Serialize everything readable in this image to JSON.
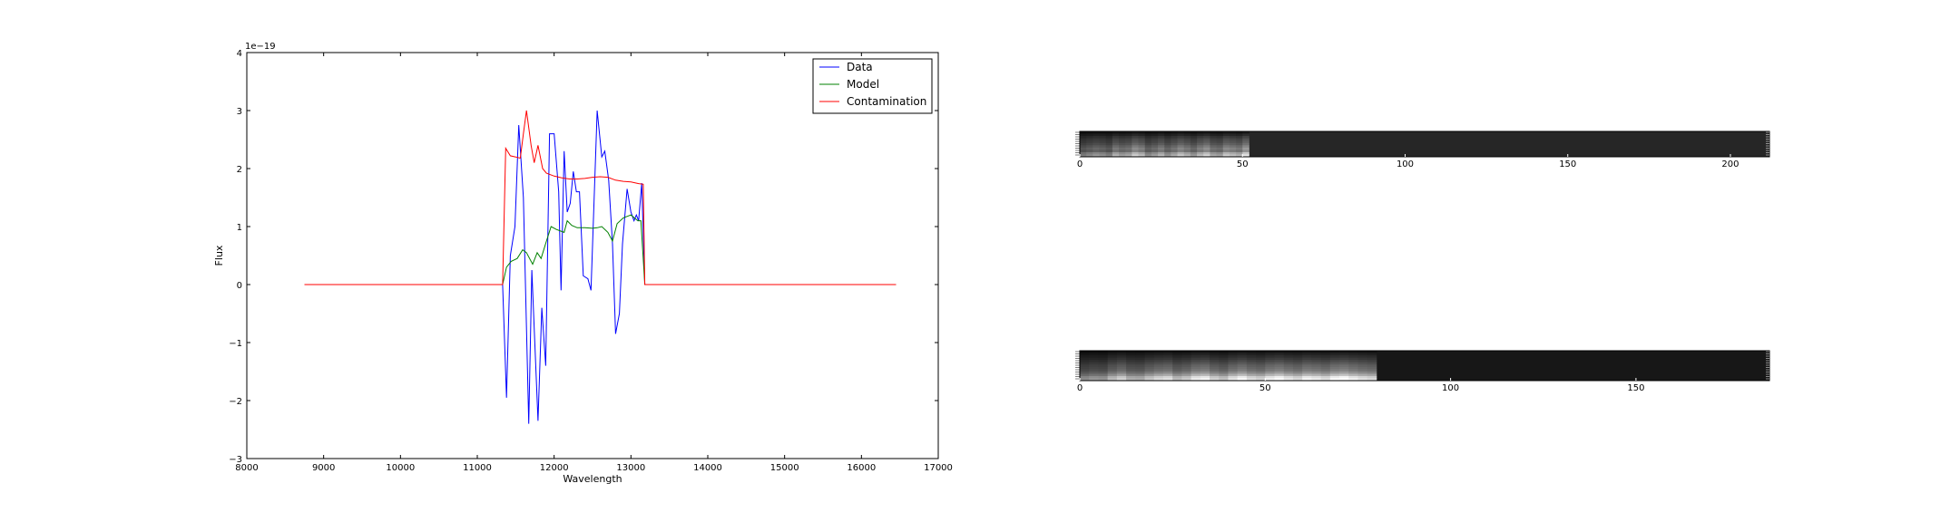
{
  "chart_data": [
    {
      "type": "line",
      "title": "",
      "xlabel": "Wavelength",
      "ylabel": "Flux",
      "y_offset_text": "1e−19",
      "xlim": [
        8000,
        17000
      ],
      "ylim": [
        -3,
        4
      ],
      "xticks": [
        8000,
        9000,
        10000,
        11000,
        12000,
        13000,
        14000,
        15000,
        16000,
        17000
      ],
      "xtick_labels": [
        "8000",
        "9000",
        "10000",
        "11000",
        "12000",
        "13000",
        "14000",
        "15000",
        "16000",
        "17000"
      ],
      "yticks": [
        -3,
        -2,
        -1,
        0,
        1,
        2,
        3,
        4
      ],
      "ytick_labels": [
        "−3",
        "−2",
        "−1",
        "0",
        "1",
        "2",
        "3",
        "4"
      ],
      "grid": false,
      "legend_position": "top-right",
      "series": [
        {
          "name": "Data",
          "color": "#0000ff",
          "points": [
            [
              8750,
              0
            ],
            [
              11330,
              0
            ],
            [
              11380,
              -1.95
            ],
            [
              11430,
              0.5
            ],
            [
              11490,
              1.0
            ],
            [
              11540,
              2.75
            ],
            [
              11600,
              1.5
            ],
            [
              11670,
              -2.4
            ],
            [
              11710,
              0.25
            ],
            [
              11790,
              -2.35
            ],
            [
              11840,
              -0.4
            ],
            [
              11890,
              -1.4
            ],
            [
              11940,
              2.6
            ],
            [
              12000,
              2.6
            ],
            [
              12060,
              1.6
            ],
            [
              12090,
              -0.1
            ],
            [
              12130,
              2.3
            ],
            [
              12170,
              1.25
            ],
            [
              12210,
              1.4
            ],
            [
              12250,
              1.95
            ],
            [
              12290,
              1.6
            ],
            [
              12330,
              1.6
            ],
            [
              12380,
              0.15
            ],
            [
              12440,
              0.1
            ],
            [
              12480,
              -0.1
            ],
            [
              12560,
              3.0
            ],
            [
              12620,
              2.2
            ],
            [
              12660,
              2.3
            ],
            [
              12710,
              1.8
            ],
            [
              12760,
              0.7
            ],
            [
              12800,
              -0.85
            ],
            [
              12850,
              -0.5
            ],
            [
              12890,
              0.7
            ],
            [
              12950,
              1.65
            ],
            [
              13000,
              1.25
            ],
            [
              13040,
              1.1
            ],
            [
              13070,
              1.2
            ],
            [
              13100,
              1.1
            ],
            [
              13140,
              1.75
            ],
            [
              13180,
              0
            ],
            [
              16450,
              0
            ]
          ]
        },
        {
          "name": "Model",
          "color": "#008000",
          "points": [
            [
              8750,
              0
            ],
            [
              11330,
              0
            ],
            [
              11380,
              0.3
            ],
            [
              11440,
              0.4
            ],
            [
              11520,
              0.45
            ],
            [
              11590,
              0.6
            ],
            [
              11640,
              0.55
            ],
            [
              11720,
              0.35
            ],
            [
              11780,
              0.55
            ],
            [
              11830,
              0.45
            ],
            [
              11900,
              0.75
            ],
            [
              11960,
              1.0
            ],
            [
              12030,
              0.95
            ],
            [
              12090,
              0.92
            ],
            [
              12130,
              0.9
            ],
            [
              12170,
              1.1
            ],
            [
              12230,
              1.02
            ],
            [
              12300,
              0.98
            ],
            [
              12400,
              0.98
            ],
            [
              12500,
              0.97
            ],
            [
              12560,
              0.98
            ],
            [
              12620,
              1.0
            ],
            [
              12700,
              0.9
            ],
            [
              12760,
              0.75
            ],
            [
              12820,
              1.05
            ],
            [
              12900,
              1.15
            ],
            [
              13000,
              1.2
            ],
            [
              13090,
              1.1
            ],
            [
              13130,
              1.1
            ],
            [
              13180,
              0
            ],
            [
              16450,
              0
            ]
          ]
        },
        {
          "name": "Contamination",
          "color": "#ff0000",
          "points": [
            [
              8750,
              0
            ],
            [
              11330,
              0
            ],
            [
              11370,
              2.35
            ],
            [
              11430,
              2.22
            ],
            [
              11500,
              2.2
            ],
            [
              11560,
              2.18
            ],
            [
              11600,
              2.6
            ],
            [
              11640,
              3.0
            ],
            [
              11700,
              2.4
            ],
            [
              11740,
              2.1
            ],
            [
              11790,
              2.4
            ],
            [
              11850,
              2.0
            ],
            [
              11900,
              1.92
            ],
            [
              12000,
              1.87
            ],
            [
              12100,
              1.84
            ],
            [
              12200,
              1.82
            ],
            [
              12300,
              1.82
            ],
            [
              12400,
              1.83
            ],
            [
              12500,
              1.85
            ],
            [
              12600,
              1.86
            ],
            [
              12700,
              1.85
            ],
            [
              12800,
              1.8
            ],
            [
              12900,
              1.78
            ],
            [
              13000,
              1.77
            ],
            [
              13100,
              1.74
            ],
            [
              13160,
              1.73
            ],
            [
              13180,
              0
            ],
            [
              16450,
              0
            ]
          ]
        }
      ]
    },
    {
      "type": "heatmap",
      "colormap": "gray",
      "xlim": [
        0,
        212
      ],
      "xticks": [
        0,
        50,
        100,
        150,
        200
      ],
      "xtick_labels": [
        "0",
        "50",
        "100",
        "150",
        "200"
      ],
      "content_extent": 52,
      "background_level": 0.15,
      "row_levels": [
        0.08,
        0.14,
        0.21,
        0.27,
        0.3,
        0.35,
        0.42,
        0.48,
        0.44,
        0.62,
        0.72
      ],
      "column_levels": [
        0.28,
        0.35,
        0.42,
        0.38,
        0.3,
        0.55,
        0.45,
        0.5,
        0.7,
        0.6,
        0.36,
        0.45,
        0.58,
        0.4,
        0.52,
        0.66,
        0.55,
        0.42,
        0.6,
        0.72,
        0.5,
        0.45,
        0.68,
        0.62,
        0.55,
        0.8
      ]
    },
    {
      "type": "heatmap",
      "colormap": "gray",
      "xlim": [
        0,
        186
      ],
      "xticks": [
        0,
        50,
        100,
        150
      ],
      "xtick_labels": [
        "0",
        "50",
        "100",
        "150"
      ],
      "content_extent": 80,
      "background_level": 0.09,
      "row_levels": [
        0.07,
        0.12,
        0.16,
        0.2,
        0.25,
        0.3,
        0.35,
        0.38,
        0.42,
        0.5,
        0.62,
        0.78,
        0.85
      ],
      "column_levels": [
        0.25,
        0.3,
        0.28,
        0.45,
        0.55,
        0.4,
        0.38,
        0.5,
        0.58,
        0.62,
        0.45,
        0.52,
        0.66,
        0.7,
        0.55,
        0.48,
        0.63,
        0.72,
        0.6,
        0.55,
        0.68,
        0.74,
        0.64,
        0.58,
        0.7,
        0.66,
        0.6,
        0.72,
        0.76,
        0.68,
        0.62,
        0.58
      ]
    }
  ]
}
